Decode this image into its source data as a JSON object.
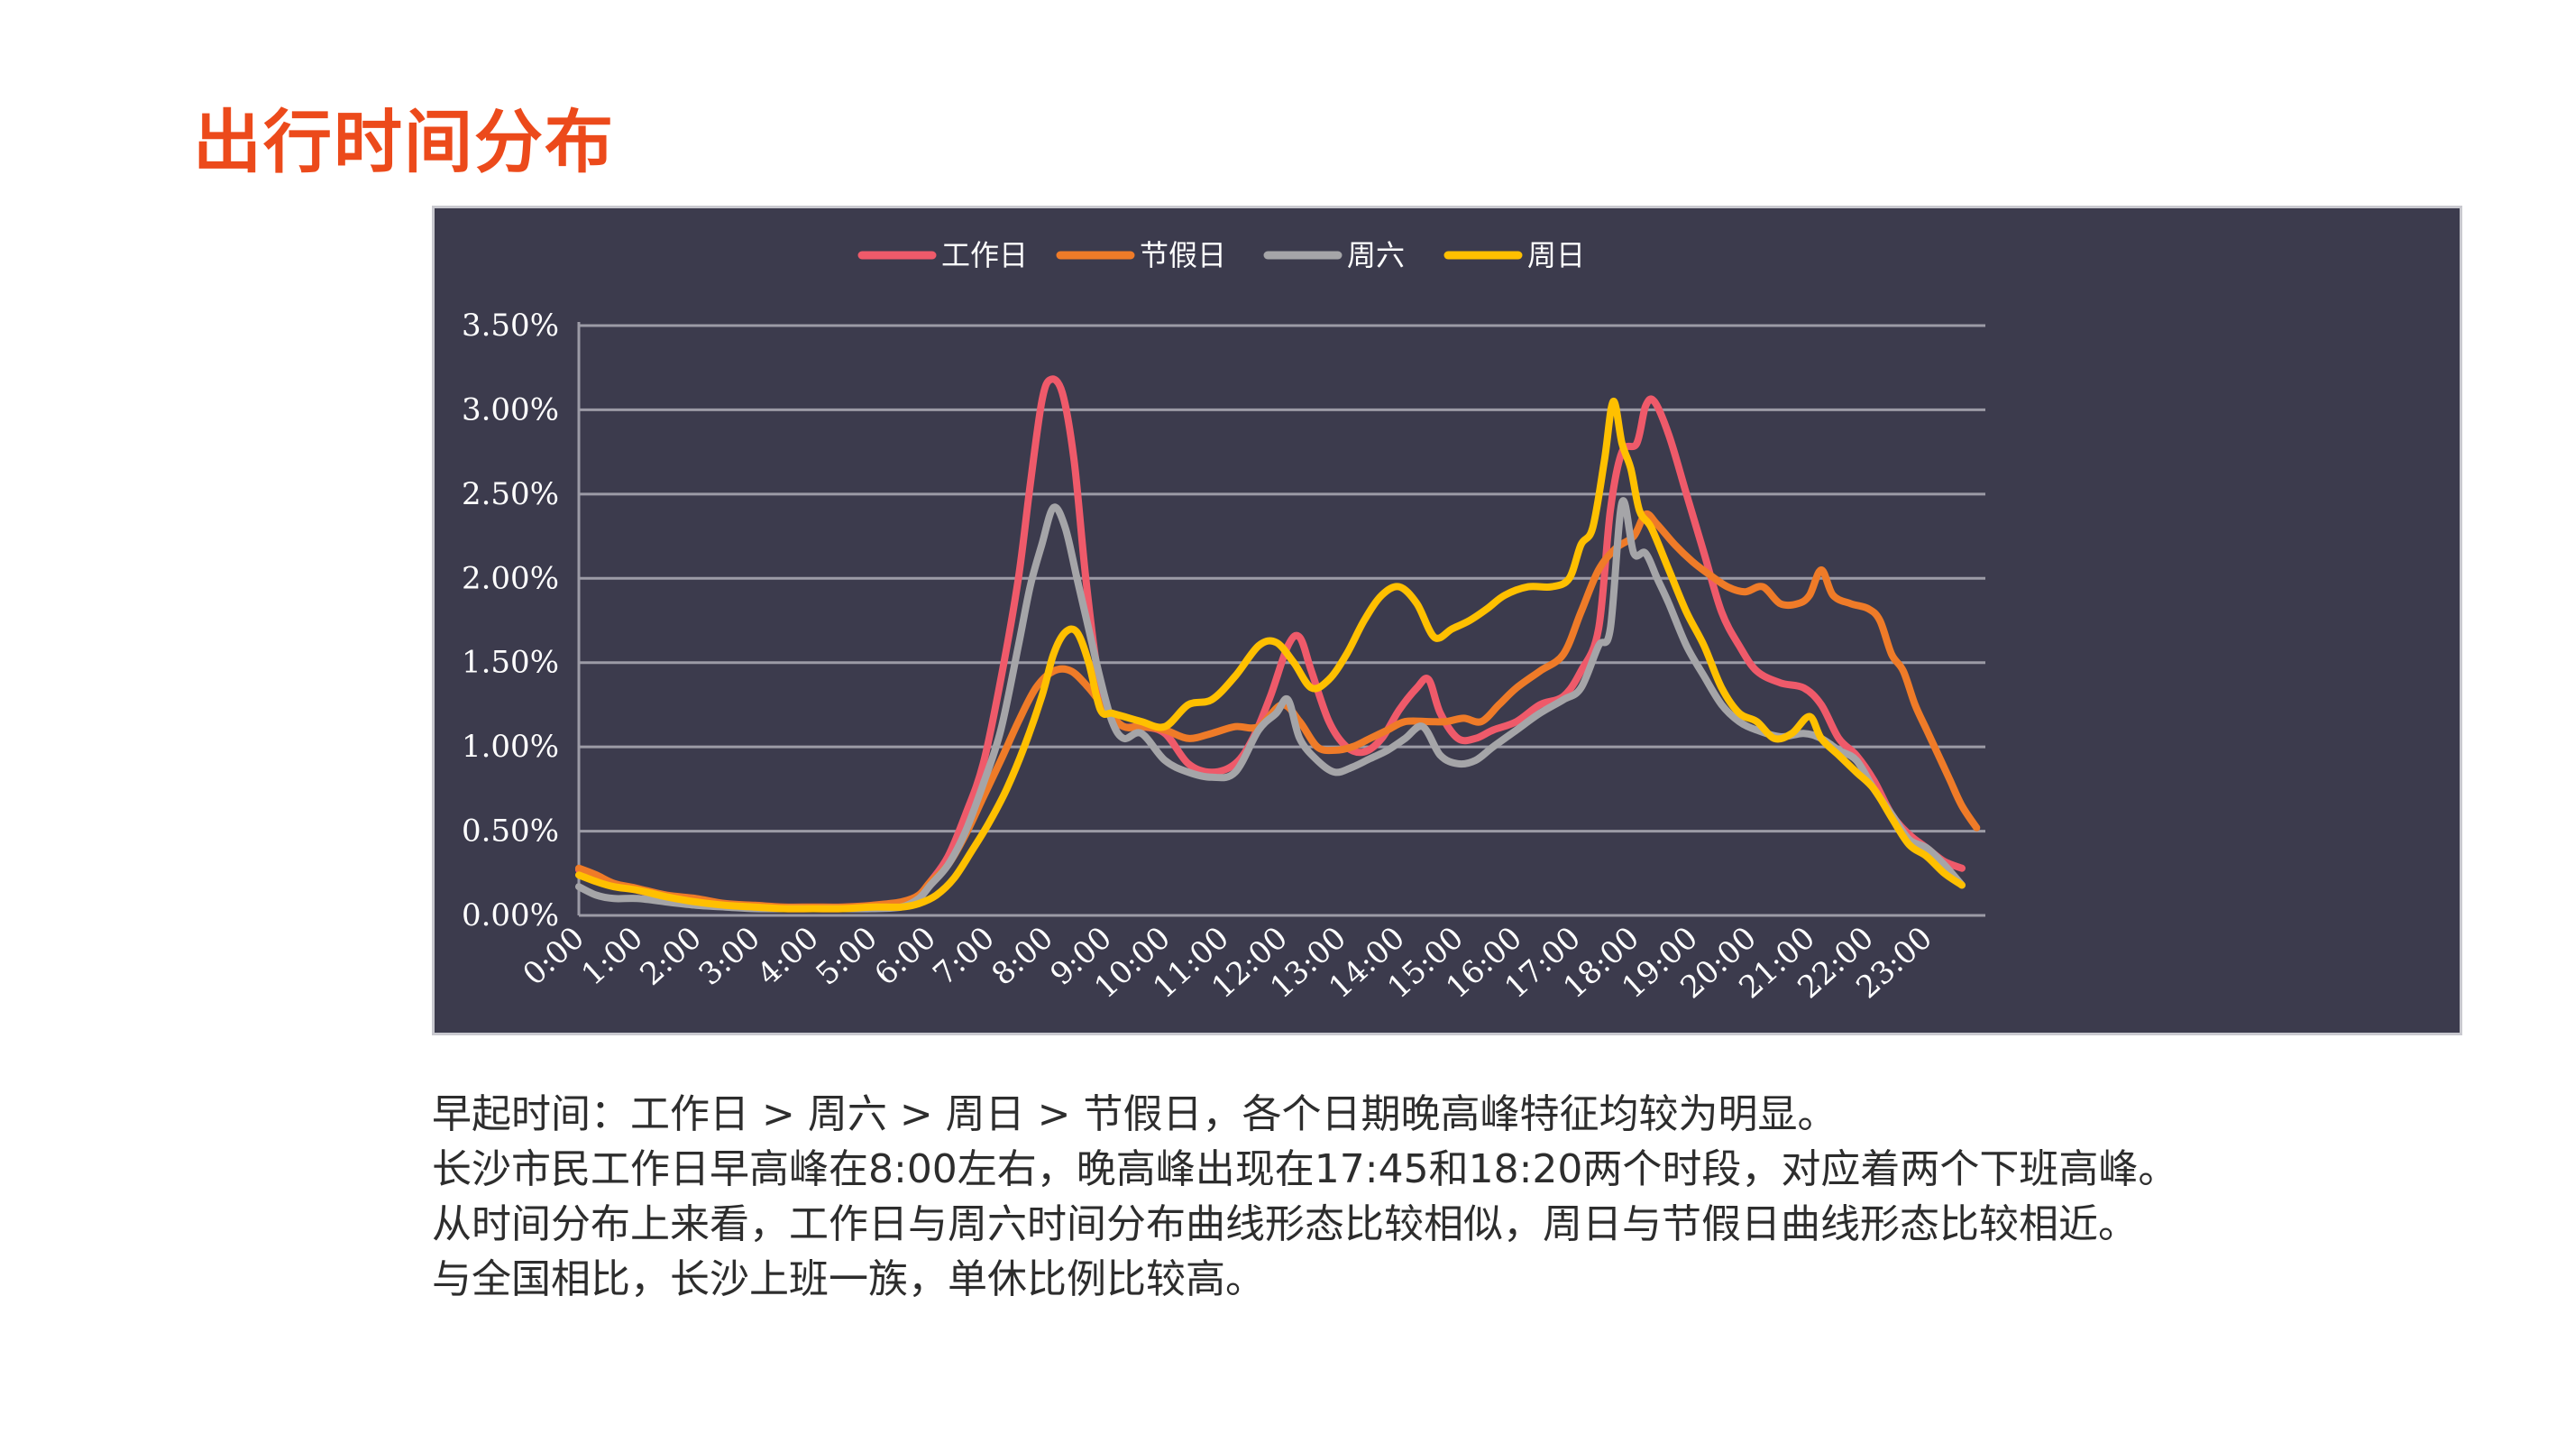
{
  "page": {
    "title": "出行时间分布",
    "notes": [
      "早起时间：工作日 > 周六 > 周日 > 节假日，各个日期晚高峰特征均较为明显。",
      "长沙市民工作日早高峰在8:00左右，晚高峰出现在17:45和18:20两个时段，对应着两个下班高峰。",
      "从时间分布上来看，工作日与周六时间分布曲线形态比较相似，周日与节假日曲线形态比较相近。",
      "与全国相比，长沙上班一族，单休比例比较高。"
    ]
  },
  "chart_data": {
    "type": "line",
    "title": "",
    "xlabel": "",
    "ylabel": "",
    "x_tick_labels": [
      "0:00",
      "1:00",
      "2:00",
      "3:00",
      "4:00",
      "5:00",
      "6:00",
      "7:00",
      "8:00",
      "9:00",
      "10:00",
      "11:00",
      "12:00",
      "13:00",
      "14:00",
      "15:00",
      "16:00",
      "17:00",
      "18:00",
      "19:00",
      "20:00",
      "21:00",
      "22:00",
      "23:00"
    ],
    "y_tick_labels": [
      "0.00%",
      "0.50%",
      "1.00%",
      "1.50%",
      "2.00%",
      "2.50%",
      "3.00%",
      "3.50%"
    ],
    "ylim": [
      0,
      3.5
    ],
    "xlim": [
      0,
      24
    ],
    "grid": "horizontal",
    "legend_position": "top-center",
    "background_color": "#3c3b4d",
    "grid_color": "#9c9ba6",
    "series": [
      {
        "name": "工作日",
        "color": "#ef5a6a",
        "points": [
          [
            0,
            0.27
          ],
          [
            0.3,
            0.22
          ],
          [
            0.6,
            0.18
          ],
          [
            1,
            0.15
          ],
          [
            1.5,
            0.11
          ],
          [
            2,
            0.08
          ],
          [
            2.5,
            0.06
          ],
          [
            3,
            0.05
          ],
          [
            3.5,
            0.04
          ],
          [
            4,
            0.04
          ],
          [
            4.5,
            0.04
          ],
          [
            5,
            0.05
          ],
          [
            5.5,
            0.07
          ],
          [
            5.8,
            0.12
          ],
          [
            6,
            0.2
          ],
          [
            6.3,
            0.35
          ],
          [
            6.6,
            0.6
          ],
          [
            6.9,
            0.9
          ],
          [
            7.2,
            1.4
          ],
          [
            7.5,
            2.0
          ],
          [
            7.7,
            2.55
          ],
          [
            7.9,
            3.05
          ],
          [
            8.05,
            3.18
          ],
          [
            8.25,
            3.1
          ],
          [
            8.45,
            2.7
          ],
          [
            8.65,
            2.0
          ],
          [
            8.85,
            1.45
          ],
          [
            9.05,
            1.2
          ],
          [
            9.3,
            1.12
          ],
          [
            9.6,
            1.12
          ],
          [
            10,
            1.08
          ],
          [
            10.4,
            0.9
          ],
          [
            10.8,
            0.85
          ],
          [
            11.2,
            0.9
          ],
          [
            11.5,
            1.05
          ],
          [
            11.8,
            1.3
          ],
          [
            12.1,
            1.6
          ],
          [
            12.3,
            1.65
          ],
          [
            12.5,
            1.45
          ],
          [
            12.8,
            1.15
          ],
          [
            13.1,
            1.0
          ],
          [
            13.4,
            0.97
          ],
          [
            13.7,
            1.05
          ],
          [
            14,
            1.22
          ],
          [
            14.3,
            1.35
          ],
          [
            14.5,
            1.4
          ],
          [
            14.7,
            1.2
          ],
          [
            15,
            1.05
          ],
          [
            15.3,
            1.05
          ],
          [
            15.6,
            1.1
          ],
          [
            16,
            1.15
          ],
          [
            16.4,
            1.25
          ],
          [
            16.8,
            1.3
          ],
          [
            17.1,
            1.45
          ],
          [
            17.4,
            1.7
          ],
          [
            17.6,
            2.4
          ],
          [
            17.8,
            2.75
          ],
          [
            18.05,
            2.8
          ],
          [
            18.2,
            3.02
          ],
          [
            18.35,
            3.05
          ],
          [
            18.6,
            2.85
          ],
          [
            18.9,
            2.5
          ],
          [
            19.2,
            2.15
          ],
          [
            19.5,
            1.8
          ],
          [
            19.8,
            1.6
          ],
          [
            20.1,
            1.45
          ],
          [
            20.5,
            1.38
          ],
          [
            20.9,
            1.35
          ],
          [
            21.2,
            1.25
          ],
          [
            21.5,
            1.05
          ],
          [
            21.8,
            0.95
          ],
          [
            22.1,
            0.8
          ],
          [
            22.4,
            0.6
          ],
          [
            22.7,
            0.48
          ],
          [
            23,
            0.4
          ],
          [
            23.3,
            0.32
          ],
          [
            23.6,
            0.28
          ]
        ]
      },
      {
        "name": "节假日",
        "color": "#ef7b28",
        "points": [
          [
            0,
            0.28
          ],
          [
            0.3,
            0.24
          ],
          [
            0.6,
            0.19
          ],
          [
            1,
            0.16
          ],
          [
            1.5,
            0.12
          ],
          [
            2,
            0.1
          ],
          [
            2.5,
            0.07
          ],
          [
            3,
            0.06
          ],
          [
            3.5,
            0.05
          ],
          [
            4,
            0.05
          ],
          [
            4.5,
            0.05
          ],
          [
            5,
            0.06
          ],
          [
            5.5,
            0.08
          ],
          [
            5.8,
            0.12
          ],
          [
            6,
            0.2
          ],
          [
            6.3,
            0.3
          ],
          [
            6.6,
            0.48
          ],
          [
            6.9,
            0.7
          ],
          [
            7.2,
            0.92
          ],
          [
            7.5,
            1.15
          ],
          [
            7.8,
            1.35
          ],
          [
            8.1,
            1.45
          ],
          [
            8.4,
            1.45
          ],
          [
            8.7,
            1.35
          ],
          [
            9,
            1.22
          ],
          [
            9.3,
            1.12
          ],
          [
            9.6,
            1.12
          ],
          [
            10,
            1.1
          ],
          [
            10.4,
            1.05
          ],
          [
            10.8,
            1.08
          ],
          [
            11.2,
            1.12
          ],
          [
            11.6,
            1.12
          ],
          [
            12,
            1.25
          ],
          [
            12.3,
            1.15
          ],
          [
            12.6,
            1.0
          ],
          [
            12.9,
            0.98
          ],
          [
            13.2,
            1.0
          ],
          [
            13.5,
            1.05
          ],
          [
            13.8,
            1.1
          ],
          [
            14.1,
            1.15
          ],
          [
            14.5,
            1.15
          ],
          [
            14.8,
            1.15
          ],
          [
            15.1,
            1.17
          ],
          [
            15.4,
            1.15
          ],
          [
            15.7,
            1.25
          ],
          [
            16,
            1.35
          ],
          [
            16.4,
            1.45
          ],
          [
            16.8,
            1.55
          ],
          [
            17.1,
            1.8
          ],
          [
            17.4,
            2.05
          ],
          [
            17.7,
            2.18
          ],
          [
            18,
            2.25
          ],
          [
            18.2,
            2.38
          ],
          [
            18.4,
            2.32
          ],
          [
            18.7,
            2.2
          ],
          [
            19,
            2.1
          ],
          [
            19.3,
            2.02
          ],
          [
            19.6,
            1.95
          ],
          [
            19.9,
            1.92
          ],
          [
            20.2,
            1.95
          ],
          [
            20.5,
            1.85
          ],
          [
            20.8,
            1.85
          ],
          [
            21,
            1.9
          ],
          [
            21.2,
            2.05
          ],
          [
            21.4,
            1.9
          ],
          [
            21.7,
            1.85
          ],
          [
            22,
            1.82
          ],
          [
            22.2,
            1.75
          ],
          [
            22.4,
            1.55
          ],
          [
            22.6,
            1.45
          ],
          [
            22.8,
            1.25
          ],
          [
            23,
            1.1
          ],
          [
            23.2,
            0.95
          ],
          [
            23.4,
            0.8
          ],
          [
            23.6,
            0.65
          ],
          [
            23.85,
            0.52
          ]
        ]
      },
      {
        "name": "周六",
        "color": "#a5a5a8",
        "points": [
          [
            0,
            0.17
          ],
          [
            0.3,
            0.12
          ],
          [
            0.6,
            0.1
          ],
          [
            1,
            0.1
          ],
          [
            1.5,
            0.08
          ],
          [
            2,
            0.06
          ],
          [
            2.5,
            0.05
          ],
          [
            3,
            0.04
          ],
          [
            3.5,
            0.04
          ],
          [
            4,
            0.04
          ],
          [
            4.5,
            0.04
          ],
          [
            5,
            0.04
          ],
          [
            5.5,
            0.05
          ],
          [
            5.8,
            0.1
          ],
          [
            6,
            0.18
          ],
          [
            6.3,
            0.3
          ],
          [
            6.6,
            0.5
          ],
          [
            6.9,
            0.78
          ],
          [
            7.2,
            1.1
          ],
          [
            7.5,
            1.6
          ],
          [
            7.7,
            1.95
          ],
          [
            7.9,
            2.2
          ],
          [
            8.1,
            2.42
          ],
          [
            8.3,
            2.3
          ],
          [
            8.5,
            2.0
          ],
          [
            8.7,
            1.7
          ],
          [
            8.9,
            1.4
          ],
          [
            9.1,
            1.15
          ],
          [
            9.3,
            1.05
          ],
          [
            9.6,
            1.08
          ],
          [
            10,
            0.92
          ],
          [
            10.4,
            0.85
          ],
          [
            10.8,
            0.82
          ],
          [
            11.2,
            0.85
          ],
          [
            11.6,
            1.1
          ],
          [
            11.9,
            1.2
          ],
          [
            12.1,
            1.28
          ],
          [
            12.3,
            1.05
          ],
          [
            12.6,
            0.92
          ],
          [
            12.9,
            0.85
          ],
          [
            13.2,
            0.88
          ],
          [
            13.5,
            0.93
          ],
          [
            13.8,
            0.98
          ],
          [
            14.1,
            1.05
          ],
          [
            14.4,
            1.12
          ],
          [
            14.7,
            0.95
          ],
          [
            15,
            0.9
          ],
          [
            15.3,
            0.92
          ],
          [
            15.6,
            1.0
          ],
          [
            16,
            1.1
          ],
          [
            16.4,
            1.2
          ],
          [
            16.8,
            1.28
          ],
          [
            17.1,
            1.35
          ],
          [
            17.4,
            1.6
          ],
          [
            17.6,
            1.7
          ],
          [
            17.8,
            2.45
          ],
          [
            18,
            2.15
          ],
          [
            18.2,
            2.15
          ],
          [
            18.4,
            2.0
          ],
          [
            18.6,
            1.85
          ],
          [
            18.9,
            1.6
          ],
          [
            19.2,
            1.42
          ],
          [
            19.5,
            1.25
          ],
          [
            19.8,
            1.15
          ],
          [
            20.1,
            1.1
          ],
          [
            20.5,
            1.06
          ],
          [
            20.9,
            1.08
          ],
          [
            21.2,
            1.05
          ],
          [
            21.5,
            0.98
          ],
          [
            21.8,
            0.92
          ],
          [
            22.1,
            0.75
          ],
          [
            22.4,
            0.6
          ],
          [
            22.7,
            0.45
          ],
          [
            23,
            0.4
          ],
          [
            23.3,
            0.3
          ],
          [
            23.6,
            0.18
          ]
        ]
      },
      {
        "name": "周日",
        "color": "#ffc000",
        "points": [
          [
            0,
            0.24
          ],
          [
            0.3,
            0.2
          ],
          [
            0.6,
            0.17
          ],
          [
            1,
            0.15
          ],
          [
            1.5,
            0.11
          ],
          [
            2,
            0.08
          ],
          [
            2.5,
            0.06
          ],
          [
            3,
            0.05
          ],
          [
            3.5,
            0.04
          ],
          [
            4,
            0.04
          ],
          [
            4.5,
            0.04
          ],
          [
            5,
            0.05
          ],
          [
            5.5,
            0.05
          ],
          [
            5.8,
            0.07
          ],
          [
            6.1,
            0.12
          ],
          [
            6.4,
            0.22
          ],
          [
            6.7,
            0.38
          ],
          [
            7,
            0.55
          ],
          [
            7.3,
            0.75
          ],
          [
            7.6,
            1.0
          ],
          [
            7.9,
            1.3
          ],
          [
            8.1,
            1.55
          ],
          [
            8.3,
            1.68
          ],
          [
            8.5,
            1.68
          ],
          [
            8.7,
            1.5
          ],
          [
            8.9,
            1.22
          ],
          [
            9.1,
            1.2
          ],
          [
            9.3,
            1.18
          ],
          [
            9.6,
            1.15
          ],
          [
            10,
            1.12
          ],
          [
            10.4,
            1.25
          ],
          [
            10.8,
            1.28
          ],
          [
            11.2,
            1.42
          ],
          [
            11.6,
            1.6
          ],
          [
            11.9,
            1.62
          ],
          [
            12.2,
            1.5
          ],
          [
            12.5,
            1.35
          ],
          [
            12.8,
            1.4
          ],
          [
            13.1,
            1.55
          ],
          [
            13.4,
            1.75
          ],
          [
            13.7,
            1.9
          ],
          [
            14,
            1.95
          ],
          [
            14.3,
            1.85
          ],
          [
            14.6,
            1.65
          ],
          [
            14.9,
            1.7
          ],
          [
            15.2,
            1.75
          ],
          [
            15.5,
            1.82
          ],
          [
            15.8,
            1.9
          ],
          [
            16.2,
            1.95
          ],
          [
            16.6,
            1.95
          ],
          [
            16.9,
            2.0
          ],
          [
            17.1,
            2.2
          ],
          [
            17.3,
            2.3
          ],
          [
            17.5,
            2.7
          ],
          [
            17.65,
            3.05
          ],
          [
            17.8,
            2.8
          ],
          [
            17.95,
            2.65
          ],
          [
            18.1,
            2.4
          ],
          [
            18.3,
            2.3
          ],
          [
            18.6,
            2.05
          ],
          [
            18.9,
            1.8
          ],
          [
            19.2,
            1.6
          ],
          [
            19.5,
            1.35
          ],
          [
            19.8,
            1.2
          ],
          [
            20.1,
            1.15
          ],
          [
            20.4,
            1.05
          ],
          [
            20.7,
            1.08
          ],
          [
            21,
            1.18
          ],
          [
            21.2,
            1.05
          ],
          [
            21.5,
            0.95
          ],
          [
            21.8,
            0.85
          ],
          [
            22.1,
            0.75
          ],
          [
            22.4,
            0.58
          ],
          [
            22.7,
            0.42
          ],
          [
            23,
            0.35
          ],
          [
            23.3,
            0.25
          ],
          [
            23.6,
            0.18
          ]
        ]
      }
    ]
  }
}
